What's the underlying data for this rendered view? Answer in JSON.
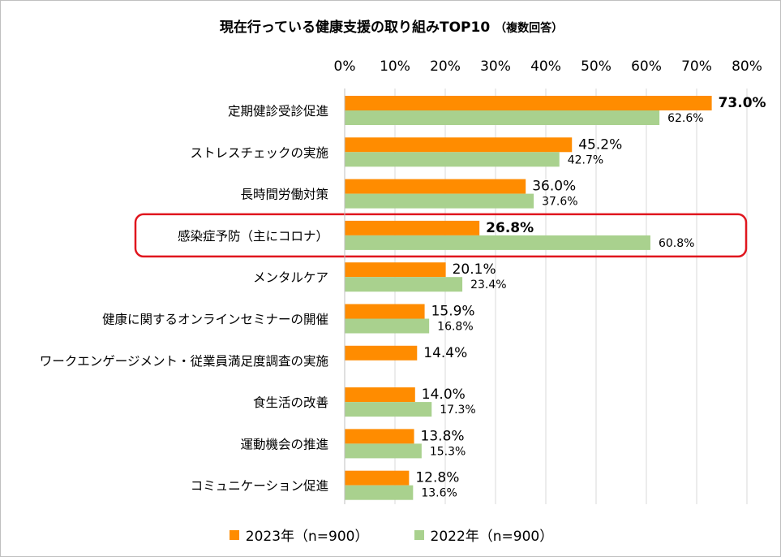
{
  "chart_data": {
    "type": "bar",
    "orientation": "horizontal",
    "title": "現在行っている健康支援の取り組みTOP10",
    "subtitle": "（複数回答）",
    "categories": [
      "定期健診受診促進",
      "ストレスチェックの実施",
      "長時間労働対策",
      "感染症予防（主にコロナ）",
      "メンタルケア",
      "健康に関するオンラインセミナーの開催",
      "ワークエンゲージメント・従業員満足度調査の実施",
      "食生活の改善",
      "運動機会の推進",
      "コミュニケーション促進"
    ],
    "series": [
      {
        "name": "2023年（n=900）",
        "color": "#ff8c00",
        "values": [
          73.0,
          45.2,
          36.0,
          26.8,
          20.1,
          15.9,
          14.4,
          14.0,
          13.8,
          12.8
        ],
        "labels": [
          "73.0%",
          "45.2%",
          "36.0%",
          "26.8%",
          "20.1%",
          "15.9%",
          "14.4%",
          "14.0%",
          "13.8%",
          "12.8%"
        ]
      },
      {
        "name": "2022年（n=900）",
        "color": "#a9d18e",
        "values": [
          62.6,
          42.7,
          37.6,
          60.8,
          23.4,
          16.8,
          null,
          17.3,
          15.3,
          13.6
        ],
        "labels": [
          "62.6%",
          "42.7%",
          "37.6%",
          "60.8%",
          "23.4%",
          "16.8%",
          null,
          "17.3%",
          "15.3%",
          "13.6%"
        ]
      }
    ],
    "xlim": [
      0,
      80
    ],
    "xticks": [
      "0%",
      "10%",
      "20%",
      "30%",
      "40%",
      "50%",
      "60%",
      "70%",
      "80%"
    ],
    "xtick_values": [
      0,
      10,
      20,
      30,
      40,
      50,
      60,
      70,
      80
    ],
    "bold_labels_2023": [
      "73.0%",
      "26.8%"
    ],
    "highlighted_category": "感染症予防（主にコロナ）",
    "highlight_color": "#e0161e",
    "legend_position": "bottom",
    "grid": true
  }
}
